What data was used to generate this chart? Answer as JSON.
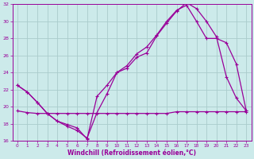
{
  "xlabel": "Windchill (Refroidissement éolien,°C)",
  "bg_color": "#cceaea",
  "grid_color": "#aacccc",
  "line_color": "#990099",
  "xlim": [
    -0.5,
    23.5
  ],
  "ylim": [
    16,
    32
  ],
  "yticks": [
    16,
    18,
    20,
    22,
    24,
    26,
    28,
    30,
    32
  ],
  "xticks": [
    0,
    1,
    2,
    3,
    4,
    5,
    6,
    7,
    8,
    9,
    10,
    11,
    12,
    13,
    14,
    15,
    16,
    17,
    18,
    19,
    20,
    21,
    22,
    23
  ],
  "series1_x": [
    0,
    1,
    2,
    3,
    4,
    5,
    6,
    7,
    8,
    9,
    10,
    11,
    12,
    13,
    14,
    15,
    16,
    17,
    18,
    19,
    20,
    21,
    22,
    23
  ],
  "series1_y": [
    22.5,
    21.7,
    20.5,
    19.2,
    18.3,
    17.9,
    17.5,
    16.2,
    21.2,
    22.5,
    24.0,
    24.8,
    26.2,
    27.0,
    28.4,
    30.0,
    31.3,
    31.9,
    30.0,
    28.0,
    28.0,
    27.5,
    25.0,
    19.5
  ],
  "series2_x": [
    0,
    1,
    2,
    3,
    4,
    5,
    6,
    7,
    8,
    9,
    10,
    11,
    12,
    13,
    14,
    15,
    16,
    17,
    18,
    19,
    20,
    21,
    22,
    23
  ],
  "series2_y": [
    22.5,
    21.7,
    20.5,
    19.2,
    18.3,
    17.7,
    17.2,
    16.3,
    19.3,
    21.5,
    24.0,
    24.5,
    25.8,
    26.3,
    28.3,
    29.8,
    31.2,
    32.2,
    31.5,
    30.0,
    28.2,
    23.5,
    21.0,
    19.5
  ],
  "series3_x": [
    0,
    1,
    2,
    3,
    4,
    5,
    6,
    7,
    8,
    9,
    10,
    11,
    12,
    13,
    14,
    15,
    16,
    17,
    18,
    19,
    20,
    21,
    22,
    23
  ],
  "series3_y": [
    19.5,
    19.3,
    19.2,
    19.2,
    19.2,
    19.2,
    19.2,
    19.2,
    19.2,
    19.2,
    19.2,
    19.2,
    19.2,
    19.2,
    19.2,
    19.2,
    19.4,
    19.4,
    19.4,
    19.4,
    19.4,
    19.4,
    19.4,
    19.4
  ]
}
